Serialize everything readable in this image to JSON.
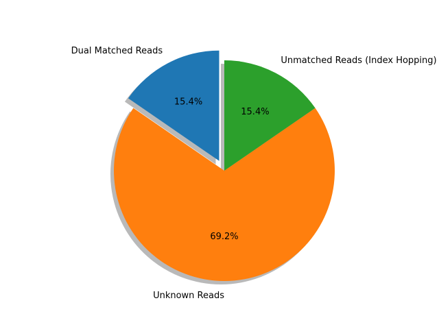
{
  "chart_data": {
    "type": "pie",
    "title": "",
    "start_angle_deg": 90,
    "counterclockwise": true,
    "shadow": true,
    "legend": "none",
    "slices": [
      {
        "label": "Dual Matched Reads",
        "value": 15.4,
        "pct_label": "15.4%",
        "color": "#1f77b4",
        "exploded": true
      },
      {
        "label": "Unknown Reads",
        "value": 69.2,
        "pct_label": "69.2%",
        "color": "#ff7f0e",
        "exploded": false
      },
      {
        "label": "Unmatched Reads (Index Hopping)",
        "value": 15.4,
        "pct_label": "15.4%",
        "color": "#2ca02c",
        "exploded": false
      }
    ]
  }
}
